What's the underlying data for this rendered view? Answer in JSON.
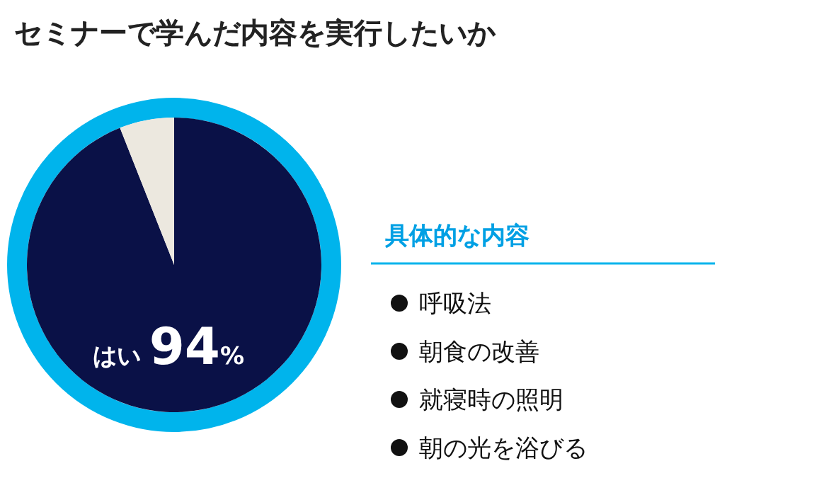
{
  "chart_data": [
    {
      "type": "pie",
      "title": "セミナーで学んだ内容を実行したいか",
      "categories": [
        "はい",
        null
      ],
      "values": [
        94,
        6
      ],
      "colors": [
        "#0a1147",
        "#ece8df"
      ],
      "value_labels": [
        "94%",
        null
      ]
    },
    {
      "type": "other",
      "title": "具体的な内容",
      "annotations": [
        "呼吸法",
        "朝食の改善",
        "就寝時の照明",
        "朝の光を浴びる"
      ]
    }
  ]
}
